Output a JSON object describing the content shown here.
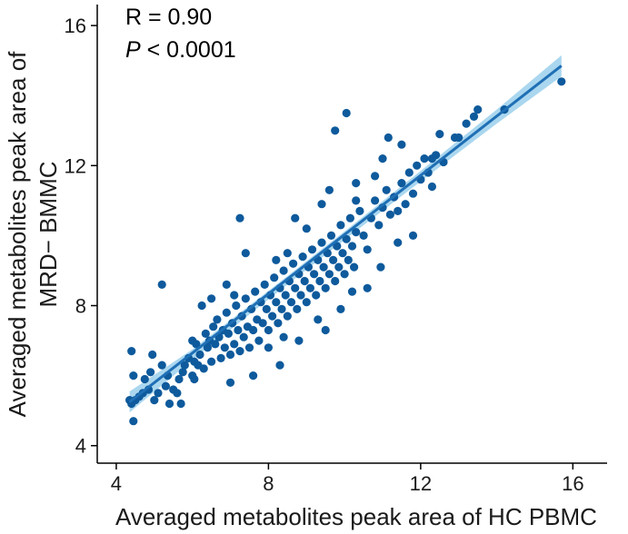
{
  "chart_data": {
    "type": "scatter",
    "xlabel": "Averaged metabolites peak area of HC PBMC",
    "ylabel_lines": [
      "Averaged metabolites peak area of",
      "MRD− BMMC"
    ],
    "xlim": [
      3.5,
      16.9
    ],
    "ylim": [
      3.5,
      16.6
    ],
    "xticks": [
      4,
      8,
      12,
      16
    ],
    "yticks": [
      4,
      8,
      12,
      16
    ],
    "grid": false,
    "annotations": {
      "r_text": "R = 0.90",
      "p_symbol": "P",
      "p_rest": " < 0.0001"
    },
    "fit_line": {
      "x": [
        4.35,
        15.7
      ],
      "y": [
        5.25,
        14.85
      ]
    },
    "confidence_band": {
      "x": [
        4.35,
        6.0,
        8.0,
        10.0,
        12.0,
        14.0,
        15.7
      ],
      "upper": [
        5.55,
        6.75,
        8.42,
        10.12,
        11.85,
        13.6,
        15.15
      ],
      "lower": [
        4.95,
        6.45,
        8.18,
        9.88,
        11.55,
        13.2,
        14.55
      ]
    },
    "colors": {
      "point": "#0e5a9c",
      "line": "#1f6fb5",
      "band": "#8ec9ea"
    },
    "points": [
      [
        4.4,
        6.7
      ],
      [
        4.45,
        6.0
      ],
      [
        4.35,
        5.3
      ],
      [
        4.4,
        5.2
      ],
      [
        4.45,
        4.7
      ],
      [
        4.5,
        5.3
      ],
      [
        4.6,
        5.4
      ],
      [
        4.7,
        5.5
      ],
      [
        4.75,
        5.9
      ],
      [
        4.85,
        5.6
      ],
      [
        4.9,
        6.1
      ],
      [
        4.95,
        6.6
      ],
      [
        5.0,
        5.3
      ],
      [
        5.1,
        5.5
      ],
      [
        5.2,
        6.3
      ],
      [
        5.3,
        5.7
      ],
      [
        5.35,
        6.0
      ],
      [
        5.4,
        5.2
      ],
      [
        5.5,
        5.6
      ],
      [
        5.6,
        5.5
      ],
      [
        5.65,
        5.9
      ],
      [
        5.75,
        6.1
      ],
      [
        5.8,
        6.3
      ],
      [
        5.9,
        6.5
      ],
      [
        6.0,
        6.0
      ],
      [
        6.05,
        6.4
      ],
      [
        6.1,
        6.9
      ],
      [
        6.15,
        6.3
      ],
      [
        6.2,
        6.6
      ],
      [
        6.3,
        6.2
      ],
      [
        6.35,
        7.2
      ],
      [
        6.4,
        6.8
      ],
      [
        6.45,
        7.0
      ],
      [
        6.5,
        6.4
      ],
      [
        6.55,
        7.4
      ],
      [
        6.6,
        6.9
      ],
      [
        6.65,
        7.6
      ],
      [
        6.7,
        7.1
      ],
      [
        6.75,
        6.5
      ],
      [
        6.8,
        7.3
      ],
      [
        6.85,
        6.8
      ],
      [
        6.9,
        7.8
      ],
      [
        6.95,
        7.2
      ],
      [
        7.0,
        6.6
      ],
      [
        7.05,
        7.5
      ],
      [
        7.1,
        6.9
      ],
      [
        7.15,
        8.0
      ],
      [
        7.2,
        7.3
      ],
      [
        7.25,
        6.7
      ],
      [
        7.3,
        7.7
      ],
      [
        7.35,
        7.1
      ],
      [
        7.4,
        8.2
      ],
      [
        7.45,
        7.4
      ],
      [
        7.5,
        6.8
      ],
      [
        7.55,
        7.9
      ],
      [
        7.6,
        7.3
      ],
      [
        7.65,
        8.4
      ],
      [
        7.7,
        7.6
      ],
      [
        7.75,
        7.0
      ],
      [
        7.8,
        8.1
      ],
      [
        7.85,
        7.5
      ],
      [
        7.9,
        8.6
      ],
      [
        7.95,
        7.9
      ],
      [
        8.0,
        7.3
      ],
      [
        8.05,
        8.3
      ],
      [
        8.1,
        7.7
      ],
      [
        8.15,
        8.8
      ],
      [
        8.2,
        8.1
      ],
      [
        8.25,
        7.5
      ],
      [
        8.3,
        8.5
      ],
      [
        8.35,
        7.9
      ],
      [
        8.4,
        9.0
      ],
      [
        8.45,
        8.3
      ],
      [
        8.5,
        7.7
      ],
      [
        8.55,
        8.7
      ],
      [
        8.6,
        8.1
      ],
      [
        8.65,
        9.2
      ],
      [
        8.7,
        8.5
      ],
      [
        8.75,
        7.9
      ],
      [
        8.8,
        8.9
      ],
      [
        8.85,
        8.3
      ],
      [
        8.9,
        9.4
      ],
      [
        8.95,
        8.7
      ],
      [
        9.0,
        8.1
      ],
      [
        9.05,
        9.1
      ],
      [
        9.1,
        8.5
      ],
      [
        9.15,
        9.6
      ],
      [
        9.2,
        8.9
      ],
      [
        9.25,
        8.3
      ],
      [
        9.3,
        9.3
      ],
      [
        9.35,
        8.7
      ],
      [
        9.4,
        9.8
      ],
      [
        9.45,
        9.1
      ],
      [
        9.5,
        8.5
      ],
      [
        9.55,
        9.5
      ],
      [
        9.6,
        8.9
      ],
      [
        9.65,
        10.0
      ],
      [
        9.7,
        9.3
      ],
      [
        9.75,
        8.7
      ],
      [
        9.8,
        9.7
      ],
      [
        9.85,
        9.1
      ],
      [
        9.9,
        10.3
      ],
      [
        9.95,
        9.5
      ],
      [
        10.0,
        8.9
      ],
      [
        10.05,
        9.9
      ],
      [
        10.1,
        9.3
      ],
      [
        10.15,
        10.5
      ],
      [
        10.2,
        9.7
      ],
      [
        10.25,
        9.1
      ],
      [
        10.3,
        10.1
      ],
      [
        10.4,
        10.7
      ],
      [
        10.5,
        10.0
      ],
      [
        10.6,
        9.6
      ],
      [
        10.7,
        10.5
      ],
      [
        10.8,
        11.0
      ],
      [
        10.9,
        10.3
      ],
      [
        11.0,
        10.8
      ],
      [
        11.1,
        11.3
      ],
      [
        11.2,
        10.6
      ],
      [
        11.3,
        11.1
      ],
      [
        11.4,
        10.7
      ],
      [
        11.5,
        11.5
      ],
      [
        11.6,
        10.9
      ],
      [
        11.7,
        11.8
      ],
      [
        11.8,
        11.2
      ],
      [
        11.9,
        12.0
      ],
      [
        12.0,
        11.6
      ],
      [
        12.1,
        12.2
      ],
      [
        12.2,
        11.8
      ],
      [
        12.3,
        11.4
      ],
      [
        12.4,
        12.3
      ],
      [
        12.6,
        12.1
      ],
      [
        12.9,
        12.8
      ],
      [
        13.0,
        12.8
      ],
      [
        13.2,
        13.2
      ],
      [
        13.4,
        13.4
      ],
      [
        13.5,
        13.6
      ],
      [
        14.2,
        13.6
      ],
      [
        15.7,
        14.4
      ],
      [
        5.2,
        8.6
      ],
      [
        6.25,
        8.0
      ],
      [
        7.25,
        10.5
      ],
      [
        9.75,
        13.0
      ],
      [
        10.05,
        13.5
      ],
      [
        11.15,
        12.8
      ],
      [
        11.8,
        10.0
      ],
      [
        10.95,
        9.1
      ],
      [
        8.3,
        6.3
      ],
      [
        7.6,
        6.0
      ],
      [
        9.5,
        7.3
      ],
      [
        6.05,
        5.9
      ],
      [
        5.7,
        5.2
      ],
      [
        6.9,
        8.6
      ],
      [
        8.5,
        9.5
      ],
      [
        9.0,
        10.2
      ],
      [
        9.4,
        10.9
      ],
      [
        10.3,
        11.5
      ],
      [
        10.8,
        11.7
      ],
      [
        11.5,
        12.6
      ],
      [
        8.7,
        10.5
      ],
      [
        7.4,
        9.5
      ],
      [
        6.5,
        8.2
      ],
      [
        9.9,
        7.9
      ],
      [
        8.8,
        7.0
      ],
      [
        10.2,
        8.4
      ],
      [
        11.4,
        9.8
      ],
      [
        12.3,
        12.2
      ],
      [
        12.5,
        12.9
      ],
      [
        11.0,
        12.2
      ],
      [
        7.0,
        5.8
      ],
      [
        8.0,
        6.8
      ],
      [
        8.4,
        7.1
      ],
      [
        9.3,
        7.6
      ],
      [
        10.6,
        8.5
      ],
      [
        9.6,
        11.3
      ],
      [
        10.3,
        11.0
      ],
      [
        8.2,
        9.3
      ],
      [
        7.1,
        8.3
      ],
      [
        6.0,
        7.0
      ]
    ]
  }
}
